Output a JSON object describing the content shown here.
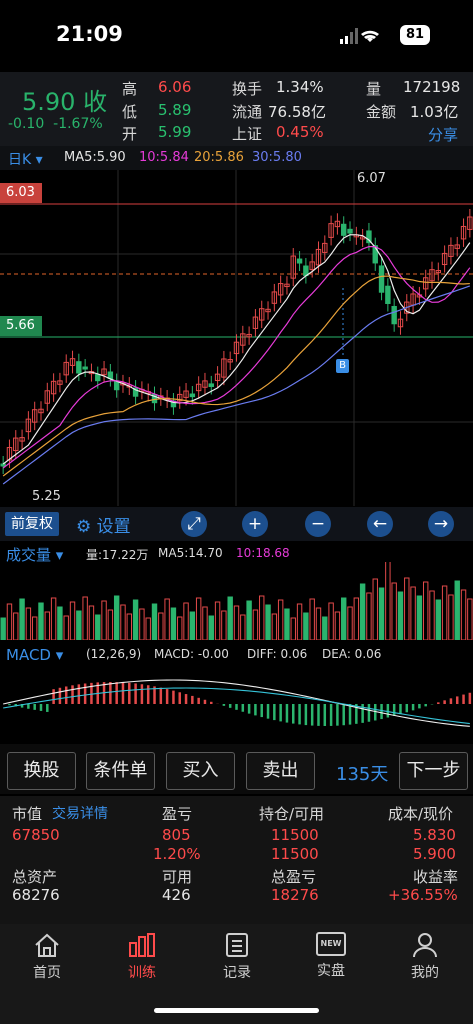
{
  "status": {
    "time": "21:09",
    "battery": "81"
  },
  "quote": {
    "price": "5.90 收",
    "change": "-0.10",
    "change_pct": "-1.67%",
    "high_label": "高",
    "high": "6.06",
    "low_label": "低",
    "low": "5.89",
    "open_label": "开",
    "open": "5.99",
    "turnover_label": "换手",
    "turnover": "1.34%",
    "float_label": "流通",
    "float": "76.58亿",
    "index_label": "上证",
    "index": "0.45%",
    "volume_label": "量",
    "volume": "172198",
    "amount_label": "金额",
    "amount": "1.03亿",
    "share": "分享"
  },
  "ma": {
    "period": "日K",
    "ma5": "MA5:5.90",
    "ma10": "10:5.84",
    "ma20": "20:5.86",
    "ma30": "30:5.80"
  },
  "price_chart": {
    "top_line": "6.03",
    "mid_line": "5.66",
    "peak": "6.07",
    "trough": "5.25",
    "marker": "B"
  },
  "toolbar": {
    "adjust": "前复权",
    "settings": "设置"
  },
  "volume_legend": {
    "title": "成交量",
    "vol": "量:17.22万",
    "ma5": "MA5:14.70",
    "ma10": "10:18.68"
  },
  "macd_legend": {
    "title": "MACD",
    "params": "(12,26,9)",
    "macd": "MACD: -0.00",
    "diff": "DIFF: 0.06",
    "dea": "DEA: 0.06"
  },
  "actions": {
    "switch": "换股",
    "condition": "条件单",
    "buy": "买入",
    "sell": "卖出",
    "days": "135天",
    "next": "下一步"
  },
  "account": {
    "market_label": "市值",
    "detail": "交易详情",
    "pl_label": "盈亏",
    "pos_label": "持仓/可用",
    "cost_label": "成本/现价",
    "market": "67850",
    "pl": "805",
    "pl_pct": "1.20%",
    "pos": "11500",
    "avail": "11500",
    "cost": "5.830",
    "now": "5.900",
    "total_label": "总资产",
    "usable_label": "可用",
    "total_pl_label": "总盈亏",
    "yield_label": "收益率",
    "total": "68276",
    "usable": "426",
    "total_pl": "18276",
    "yield": "+36.55%"
  },
  "tabs": {
    "home": "首页",
    "train": "训练",
    "record": "记录",
    "real": "实盘",
    "mine": "我的",
    "new_badge": "NEW"
  }
}
